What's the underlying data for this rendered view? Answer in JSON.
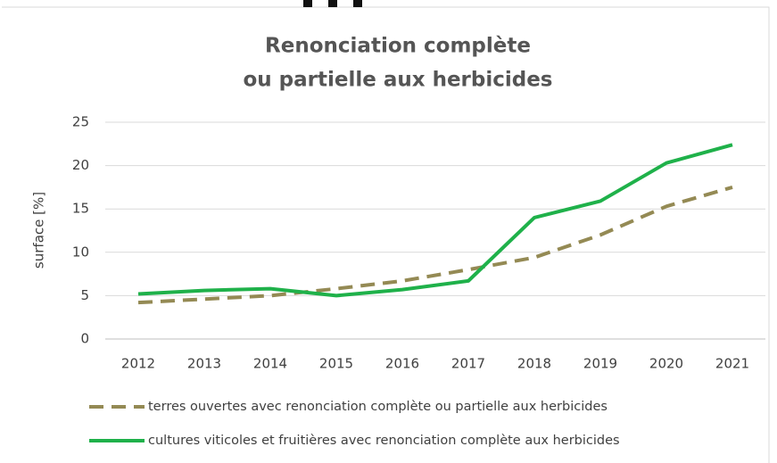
{
  "chart_data": {
    "type": "line",
    "title": [
      "Renonciation complète",
      "ou partielle aux herbicides"
    ],
    "y_label": "surface [%]",
    "x": [
      2012,
      2013,
      2014,
      2015,
      2016,
      2017,
      2018,
      2019,
      2020,
      2021
    ],
    "xlim": [
      2011.5,
      2021.5
    ],
    "xticks": [
      2012,
      2013,
      2014,
      2015,
      2016,
      2017,
      2018,
      2019,
      2020,
      2021
    ],
    "ylim": [
      0,
      25
    ],
    "yticks": [
      0,
      5,
      10,
      15,
      20,
      25
    ],
    "grid": true,
    "legend": "bottom",
    "series": [
      {
        "name": "terres ouvertes avec renonciation complète ou partielle aux herbicides",
        "color": "#948a54",
        "dashed": true,
        "values": [
          4.2,
          4.6,
          5.0,
          5.8,
          6.7,
          8.0,
          9.4,
          12.0,
          15.3,
          17.5
        ]
      },
      {
        "name": "cultures viticoles et fruitières avec renonciation complète aux herbicides",
        "color": "#1fb14a",
        "dashed": false,
        "values": [
          5.2,
          5.6,
          5.8,
          5.0,
          5.7,
          6.7,
          14.0,
          15.9,
          20.3,
          22.4
        ]
      }
    ]
  }
}
